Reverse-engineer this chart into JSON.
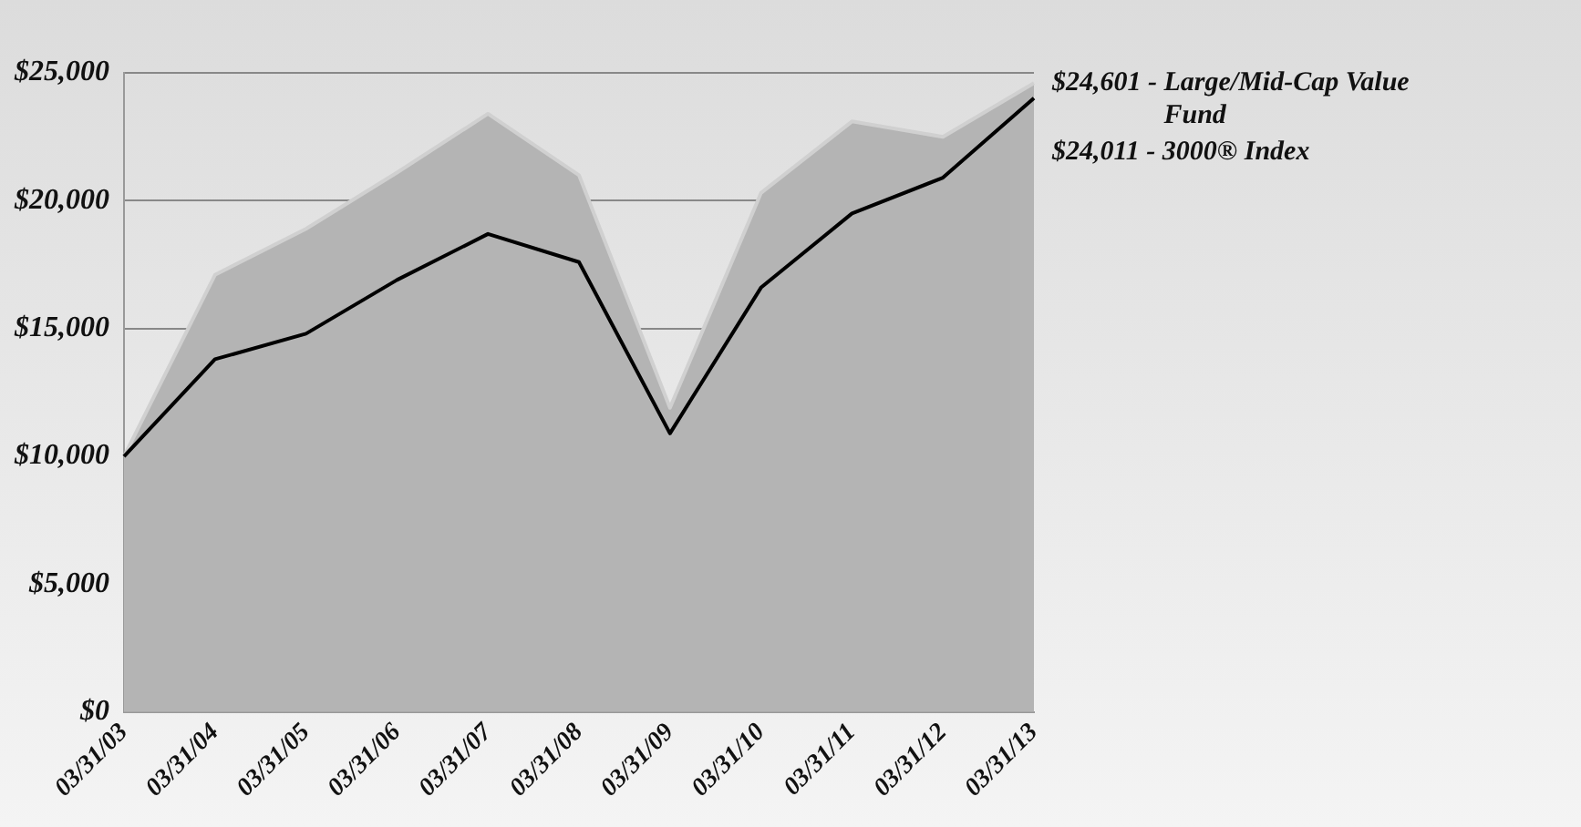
{
  "chart_data": {
    "type": "line",
    "categories": [
      "03/31/03",
      "03/31/04",
      "03/31/05",
      "03/31/06",
      "03/31/07",
      "03/31/08",
      "03/31/09",
      "03/31/10",
      "03/31/11",
      "03/31/12",
      "03/31/13"
    ],
    "series": [
      {
        "type": "area",
        "color": "#b4b4b4",
        "values": [
          10000,
          17100,
          18900,
          21100,
          23400,
          21000,
          11900,
          20300,
          23100,
          22500,
          24601
        ]
      },
      {
        "type": "line",
        "color": "#000000",
        "values": [
          10000,
          13800,
          14800,
          16900,
          18700,
          17600,
          10900,
          16600,
          19500,
          20900,
          24011
        ]
      }
    ],
    "ylim": [
      0,
      25000
    ],
    "yticks": [
      {
        "value": 0,
        "label": "$0"
      },
      {
        "value": 5000,
        "label": "$5,000"
      },
      {
        "value": 10000,
        "label": "$10,000"
      },
      {
        "value": 15000,
        "label": "$15,000"
      },
      {
        "value": 20000,
        "label": "$20,000"
      },
      {
        "value": 25000,
        "label": "$25,000"
      }
    ],
    "grid": "y",
    "legend": false,
    "marker": "none",
    "line_style": "solid",
    "annotations": [
      {
        "text": "$24,601 - Large/Mid-Cap Value Fund",
        "x": "03/31/13",
        "y": 24601
      },
      {
        "text": "$24,011 - 3000® Index",
        "x": "03/31/13",
        "y": 24011
      }
    ]
  }
}
